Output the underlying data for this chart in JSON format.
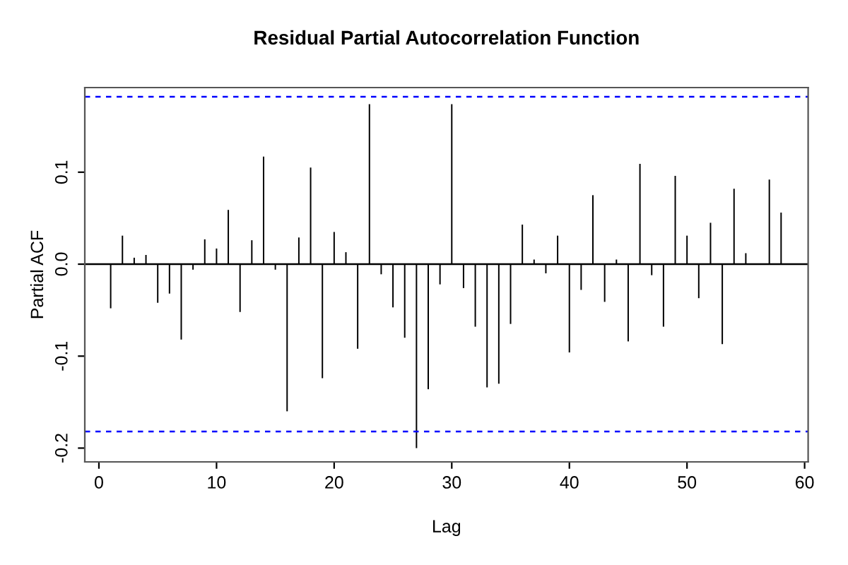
{
  "chart_data": {
    "type": "bar",
    "title": "Residual Partial Autocorrelation Function",
    "xlabel": "Lag",
    "ylabel": "Partial ACF",
    "x": [
      1,
      2,
      3,
      4,
      5,
      6,
      7,
      8,
      9,
      10,
      11,
      12,
      13,
      14,
      15,
      16,
      17,
      18,
      19,
      20,
      21,
      22,
      23,
      24,
      25,
      26,
      27,
      28,
      29,
      30,
      31,
      32,
      33,
      34,
      35,
      36,
      37,
      38,
      39,
      40,
      41,
      42,
      43,
      44,
      45,
      46,
      47,
      48,
      49,
      50,
      51,
      52,
      53,
      54,
      55,
      56,
      57,
      58
    ],
    "series": [
      {
        "color": "#000000",
        "values": [
          -0.048,
          0.031,
          0.007,
          0.01,
          -0.042,
          -0.032,
          -0.082,
          -0.006,
          0.027,
          0.017,
          0.059,
          -0.052,
          0.026,
          0.117,
          -0.006,
          -0.16,
          0.029,
          0.105,
          -0.124,
          0.035,
          0.013,
          -0.092,
          0.174,
          -0.011,
          -0.047,
          -0.08,
          -0.2,
          -0.136,
          -0.022,
          0.174,
          -0.026,
          -0.068,
          -0.134,
          -0.13,
          -0.065,
          0.043,
          0.005,
          -0.01,
          0.031,
          -0.096,
          -0.028,
          0.075,
          -0.041,
          0.005,
          -0.084,
          0.109,
          -0.012,
          -0.068,
          0.096,
          0.031,
          -0.037,
          0.045,
          -0.087,
          0.082,
          0.012,
          null,
          0.092,
          0.056
        ]
      }
    ],
    "xlim": [
      -1.2,
      60.3
    ],
    "xticks": [
      0,
      10,
      20,
      30,
      40,
      50,
      60
    ],
    "ylim": [
      -0.215,
      0.192
    ],
    "yticks": [
      -0.2,
      -0.1,
      {
        "value": 0,
        "label": "0.0"
      },
      0.1
    ],
    "ref_lines": [
      {
        "axis": "y",
        "value": 0,
        "color": "#000000",
        "line_style": "solid"
      },
      {
        "axis": "y",
        "value": 0.182,
        "color": "#0000ff",
        "line_style": "dashed"
      },
      {
        "axis": "y",
        "value": -0.182,
        "color": "#0000ff",
        "line_style": "dashed"
      }
    ],
    "grid": false,
    "legend": false
  }
}
